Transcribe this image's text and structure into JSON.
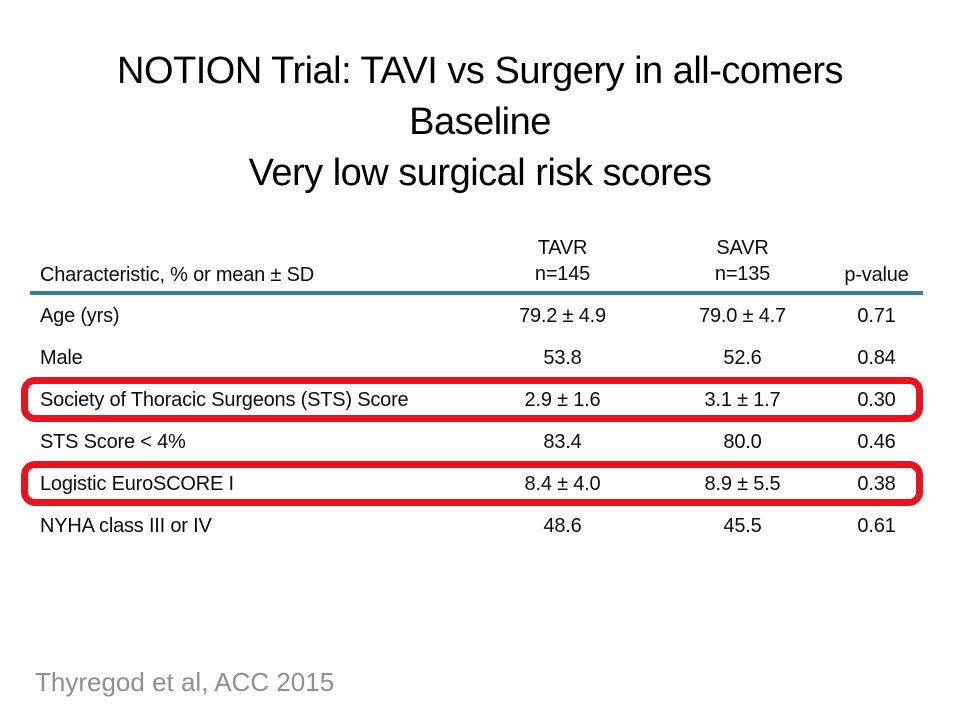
{
  "title": {
    "line1": "NOTION Trial: TAVI vs Surgery in all-comers",
    "line2": "Baseline",
    "line3": "Very low surgical risk scores"
  },
  "table": {
    "header": {
      "characteristic": "Characteristic, % or mean ± SD",
      "tavr_line1": "TAVR",
      "tavr_line2": "n=145",
      "savr_line1": "SAVR",
      "savr_line2": "n=135",
      "pvalue": "p-value"
    },
    "rows": [
      {
        "label": "Age (yrs)",
        "tavr": "79.2 ± 4.9",
        "savr": "79.0 ± 4.7",
        "p": "0.71",
        "highlighted": false
      },
      {
        "label": "Male",
        "tavr": "53.8",
        "savr": "52.6",
        "p": "0.84",
        "highlighted": false
      },
      {
        "label": "Society of Thoracic Surgeons (STS) Score",
        "tavr": "2.9 ± 1.6",
        "savr": "3.1 ± 1.7",
        "p": "0.30",
        "highlighted": true
      },
      {
        "label": "STS Score < 4%",
        "tavr": "83.4",
        "savr": "80.0",
        "p": "0.46",
        "highlighted": false
      },
      {
        "label": "Logistic EuroSCORE I",
        "tavr": "8.4 ± 4.0",
        "savr": "8.9 ± 5.5",
        "p": "0.38",
        "highlighted": true
      },
      {
        "label": "NYHA class III or IV",
        "tavr": "48.6",
        "savr": "45.5",
        "p": "0.61",
        "highlighted": false
      }
    ]
  },
  "footer": {
    "citation": "Thyregod et al, ACC 2015"
  },
  "colors": {
    "header_rule": "#3a7f93",
    "highlight_box": "#e8131c",
    "footer_text": "#8f8f8f",
    "text": "#0d0d0d"
  }
}
